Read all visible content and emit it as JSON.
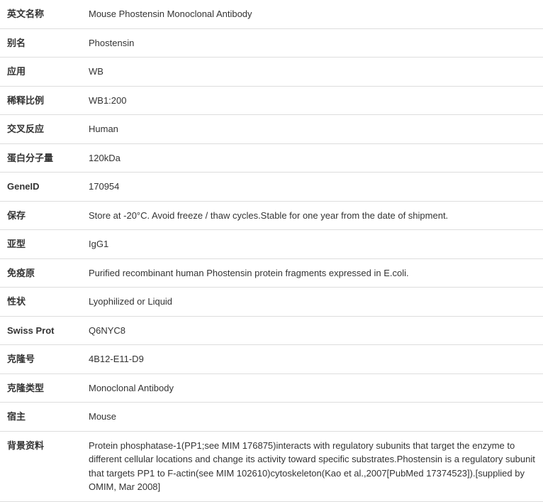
{
  "rows": [
    {
      "label": "英文名称",
      "value": "Mouse Phostensin Monoclonal Antibody"
    },
    {
      "label": "别名",
      "value": "Phostensin"
    },
    {
      "label": "应用",
      "value": "WB"
    },
    {
      "label": "稀释比例",
      "value": "WB1:200"
    },
    {
      "label": "交叉反应",
      "value": "Human"
    },
    {
      "label": "蛋白分子量",
      "value": "120kDa"
    },
    {
      "label": "GeneID",
      "value": "170954"
    },
    {
      "label": "保存",
      "value": "Store at -20°C. Avoid freeze / thaw cycles.Stable for one year from the date of shipment."
    },
    {
      "label": "亚型",
      "value": "IgG1"
    },
    {
      "label": "免疫原",
      "value": "Purified recombinant human Phostensin protein fragments expressed in E.coli."
    },
    {
      "label": "性状",
      "value": "Lyophilized or Liquid"
    },
    {
      "label": "Swiss Prot",
      "value": "Q6NYC8"
    },
    {
      "label": "克隆号",
      "value": "4B12-E11-D9"
    },
    {
      "label": "克隆类型",
      "value": "Monoclonal Antibody"
    },
    {
      "label": "宿主",
      "value": "Mouse"
    },
    {
      "label": "背景资料",
      "value": "Protein phosphatase-1(PP1;see MIM 176875)interacts with regulatory subunits that target the enzyme to different cellular locations and change its activity toward specific substrates.Phostensin is a regulatory subunit that targets PP1 to F-actin(see MIM 102610)cytoskeleton(Kao et al.,2007[PubMed 17374523]).[supplied by OMIM, Mar 2008]"
    }
  ]
}
